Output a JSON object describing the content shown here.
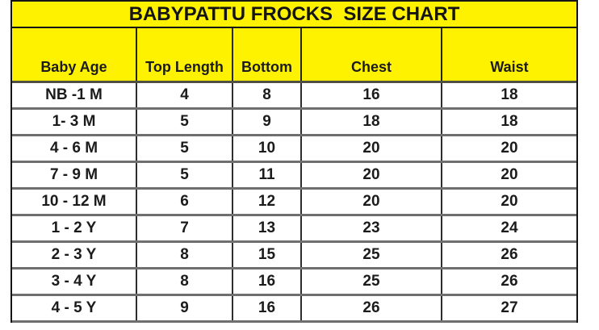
{
  "chart_data": {
    "type": "table",
    "title": "BABYPATTU FROCKS  SIZE CHART",
    "columns": [
      "Baby Age",
      "Top Length",
      "Bottom",
      "Chest",
      "Waist"
    ],
    "rows": [
      [
        "NB -1 M",
        "4",
        "8",
        "16",
        "18"
      ],
      [
        "1- 3 M",
        "5",
        "9",
        "18",
        "18"
      ],
      [
        "4 - 6 M",
        "5",
        "10",
        "20",
        "20"
      ],
      [
        "7 - 9 M",
        "5",
        "11",
        "20",
        "20"
      ],
      [
        "10 - 12 M",
        "6",
        "12",
        "20",
        "20"
      ],
      [
        "1 - 2 Y",
        "7",
        "13",
        "23",
        "24"
      ],
      [
        "2 - 3 Y",
        "8",
        "15",
        "25",
        "26"
      ],
      [
        "3 - 4 Y",
        "8",
        "16",
        "25",
        "26"
      ],
      [
        "4 - 5 Y",
        "9",
        "16",
        "26",
        "27"
      ]
    ],
    "layout": {
      "legend": "none",
      "grid": "on",
      "header_position": "top",
      "header_text_align": "bottom-center"
    }
  },
  "colors": {
    "header_bg": "#FFF200",
    "row_bg": "#FFFFFF",
    "text": "#1B1B1B",
    "grid_vertical": "#2E2E2E",
    "grid_horizontal": "#6F6F6F",
    "outer_border": "#151515"
  }
}
